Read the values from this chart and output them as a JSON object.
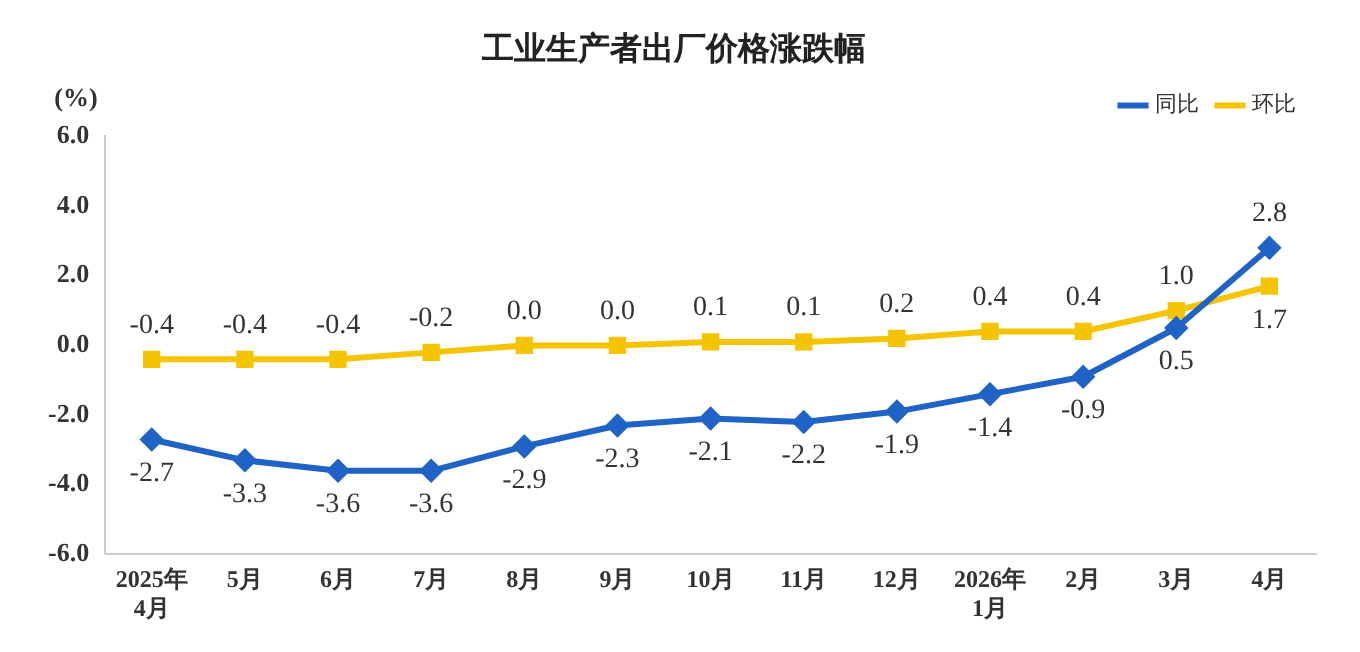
{
  "chart_data": {
    "type": "line",
    "title": "工业生产者出厂价格涨跌幅",
    "ylabel": "(%)",
    "categories": [
      "2025年\n4月",
      "5月",
      "6月",
      "7月",
      "8月",
      "9月",
      "10月",
      "11月",
      "12月",
      "2026年\n1月",
      "2月",
      "3月",
      "4月"
    ],
    "series": [
      {
        "name": "同比",
        "color": "#1f63c6",
        "marker": "diamond",
        "values": [
          -2.7,
          -3.3,
          -3.6,
          -3.6,
          -2.9,
          -2.3,
          -2.1,
          -2.2,
          -1.9,
          -1.4,
          -0.9,
          0.5,
          2.8
        ],
        "value_labels": [
          "-2.7",
          "-3.3",
          "-3.6",
          "-3.6",
          "-2.9",
          "-2.3",
          "-2.1",
          "-2.2",
          "-1.9",
          "-1.4",
          "-0.9",
          "0.5",
          "2.8"
        ]
      },
      {
        "name": "环比",
        "color": "#f5c400",
        "marker": "square",
        "values": [
          -0.4,
          -0.4,
          -0.4,
          -0.2,
          0.0,
          0.0,
          0.1,
          0.1,
          0.2,
          0.4,
          0.4,
          1.0,
          1.7
        ],
        "value_labels": [
          "-0.4",
          "-0.4",
          "-0.4",
          "-0.2",
          "0.0",
          "0.0",
          "0.1",
          "0.1",
          "0.2",
          "0.4",
          "0.4",
          "1.0",
          "1.7"
        ]
      }
    ],
    "ylim": [
      -6,
      6
    ],
    "yticks": [
      {
        "value": -6,
        "label": "-6.0"
      },
      {
        "value": -4,
        "label": "-4.0"
      },
      {
        "value": -2,
        "label": "-2.0"
      },
      {
        "value": 0,
        "label": "0.0"
      },
      {
        "value": 2,
        "label": "2.0"
      },
      {
        "value": 4,
        "label": "4.0"
      },
      {
        "value": 6,
        "label": "6.0"
      }
    ],
    "grid": false,
    "legend": "top right",
    "line_style": "solid"
  }
}
